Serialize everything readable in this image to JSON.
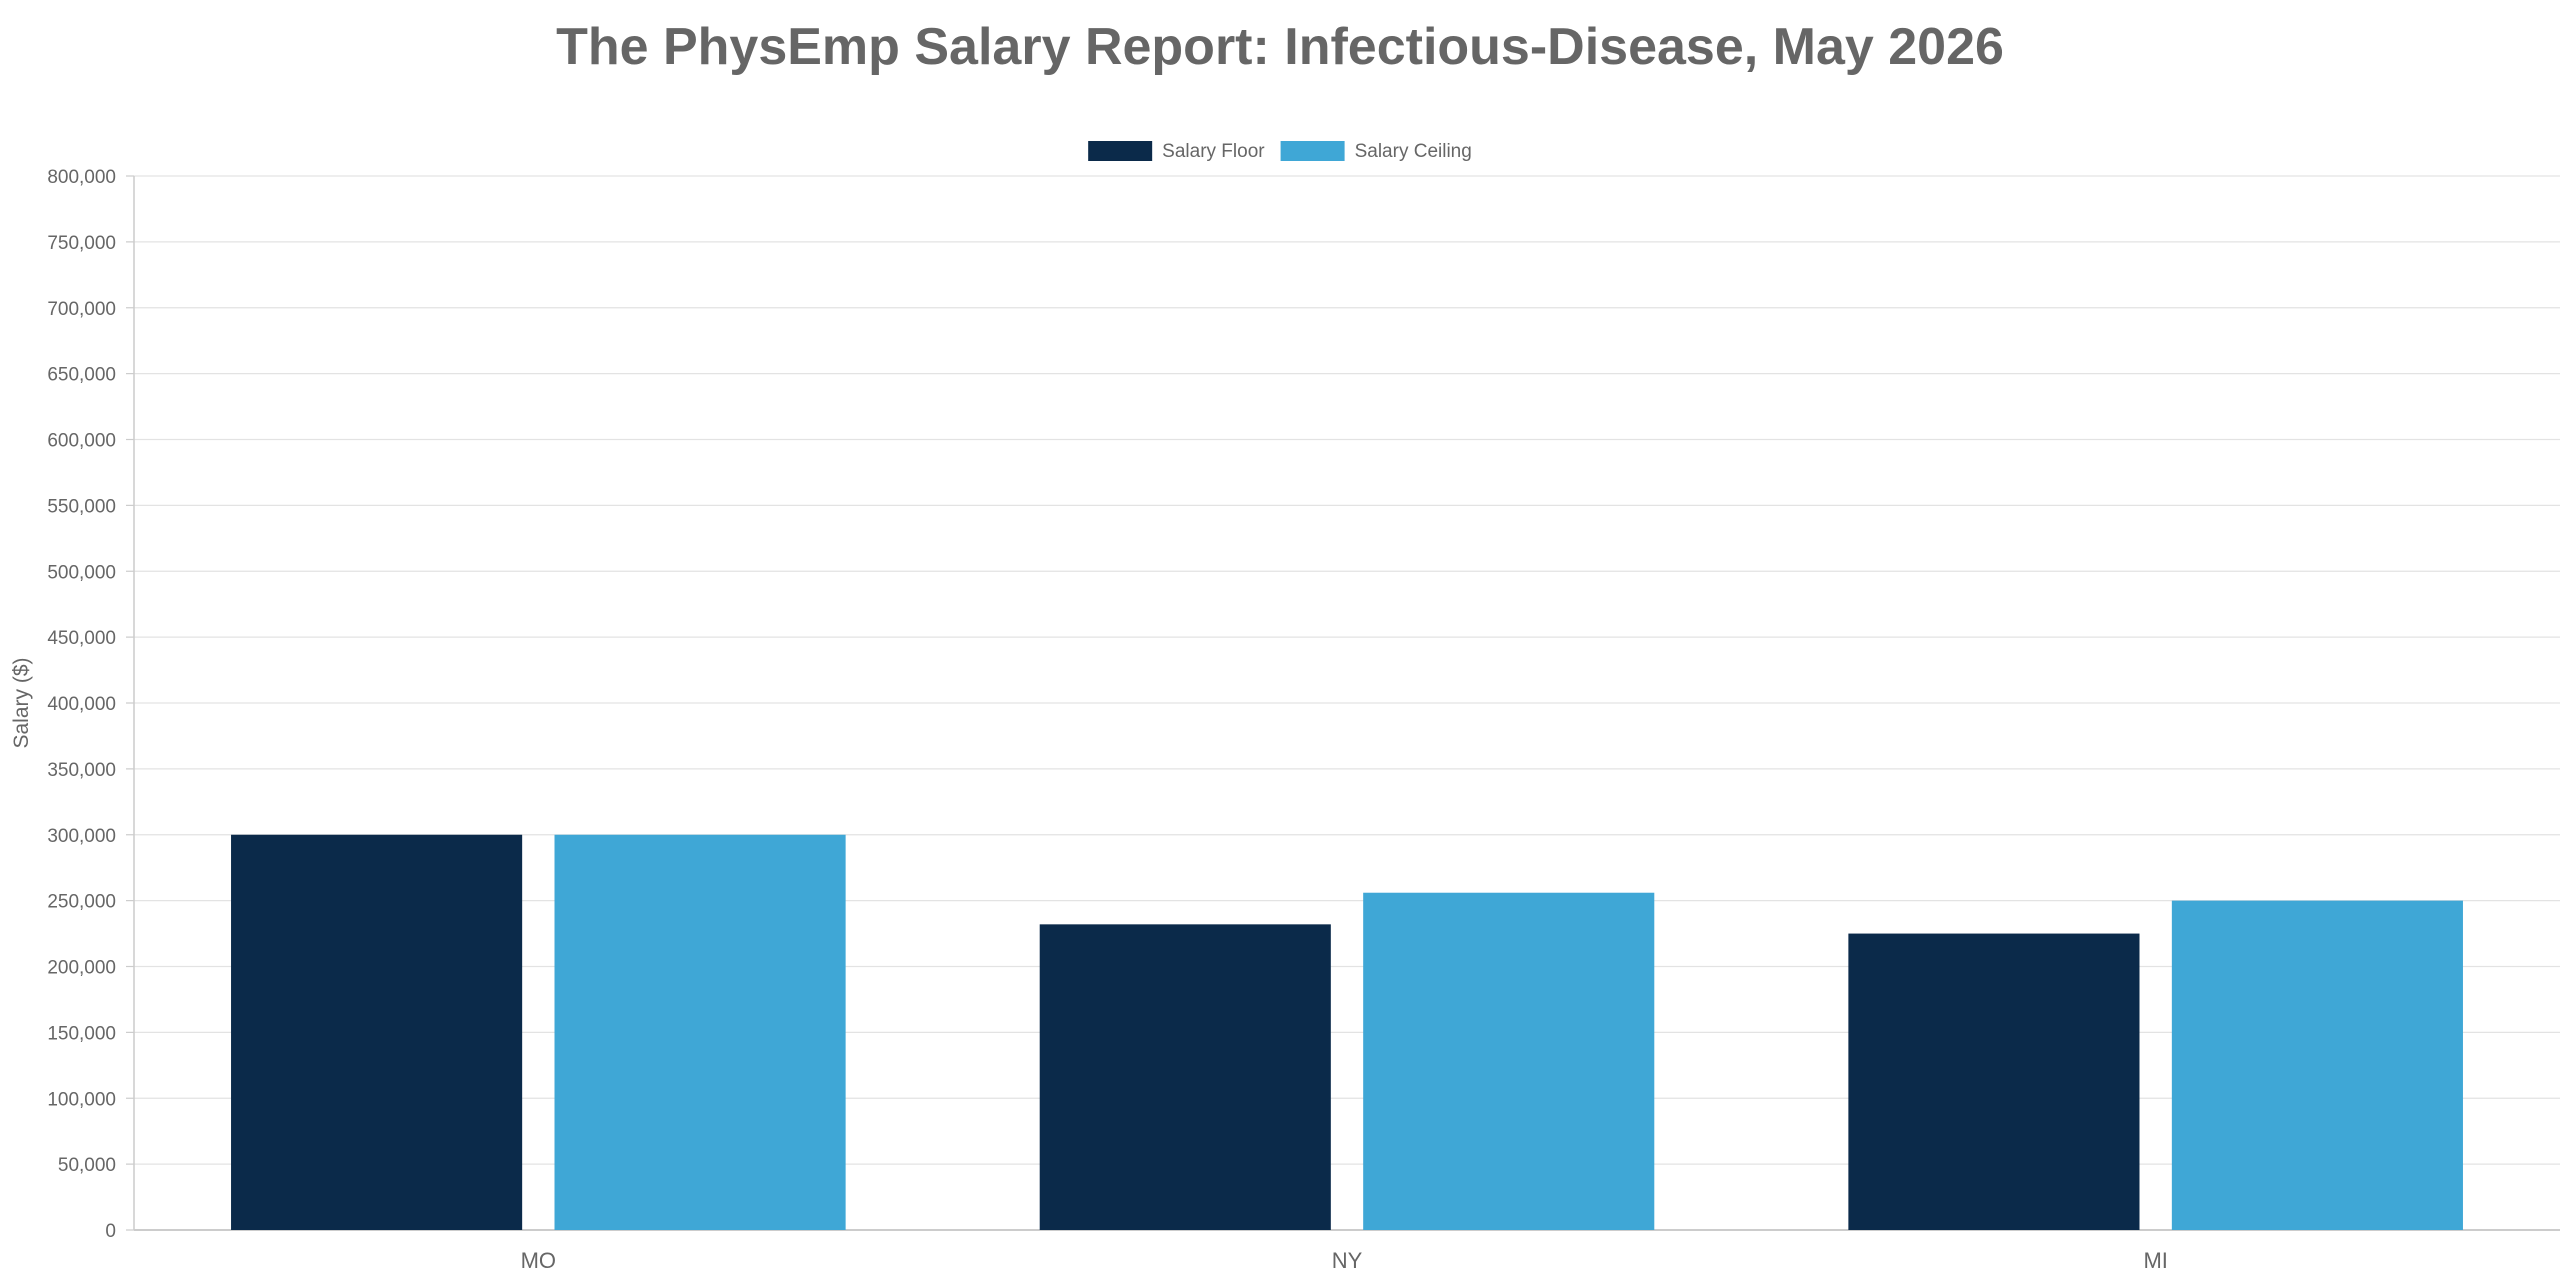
{
  "chart_data": {
    "type": "bar",
    "title": "The PhysEmp Salary Report: Infectious-Disease, May 2026",
    "xlabel": "",
    "ylabel": "Salary ($)",
    "ylim": [
      0,
      800000
    ],
    "ytick_step": 50000,
    "yticks": [
      "0",
      "50,000",
      "100,000",
      "150,000",
      "200,000",
      "250,000",
      "300,000",
      "350,000",
      "400,000",
      "450,000",
      "500,000",
      "550,000",
      "600,000",
      "650,000",
      "700,000",
      "750,000",
      "800,000"
    ],
    "categories": [
      "MO",
      "NY",
      "MI"
    ],
    "series": [
      {
        "name": "Salary Floor",
        "color": "#0b2a4a",
        "values": [
          300000,
          232000,
          225000
        ]
      },
      {
        "name": "Salary Ceiling",
        "color": "#3fa7d6",
        "values": [
          300000,
          256000,
          250000
        ]
      }
    ],
    "grid": true,
    "legend": "top-center"
  }
}
